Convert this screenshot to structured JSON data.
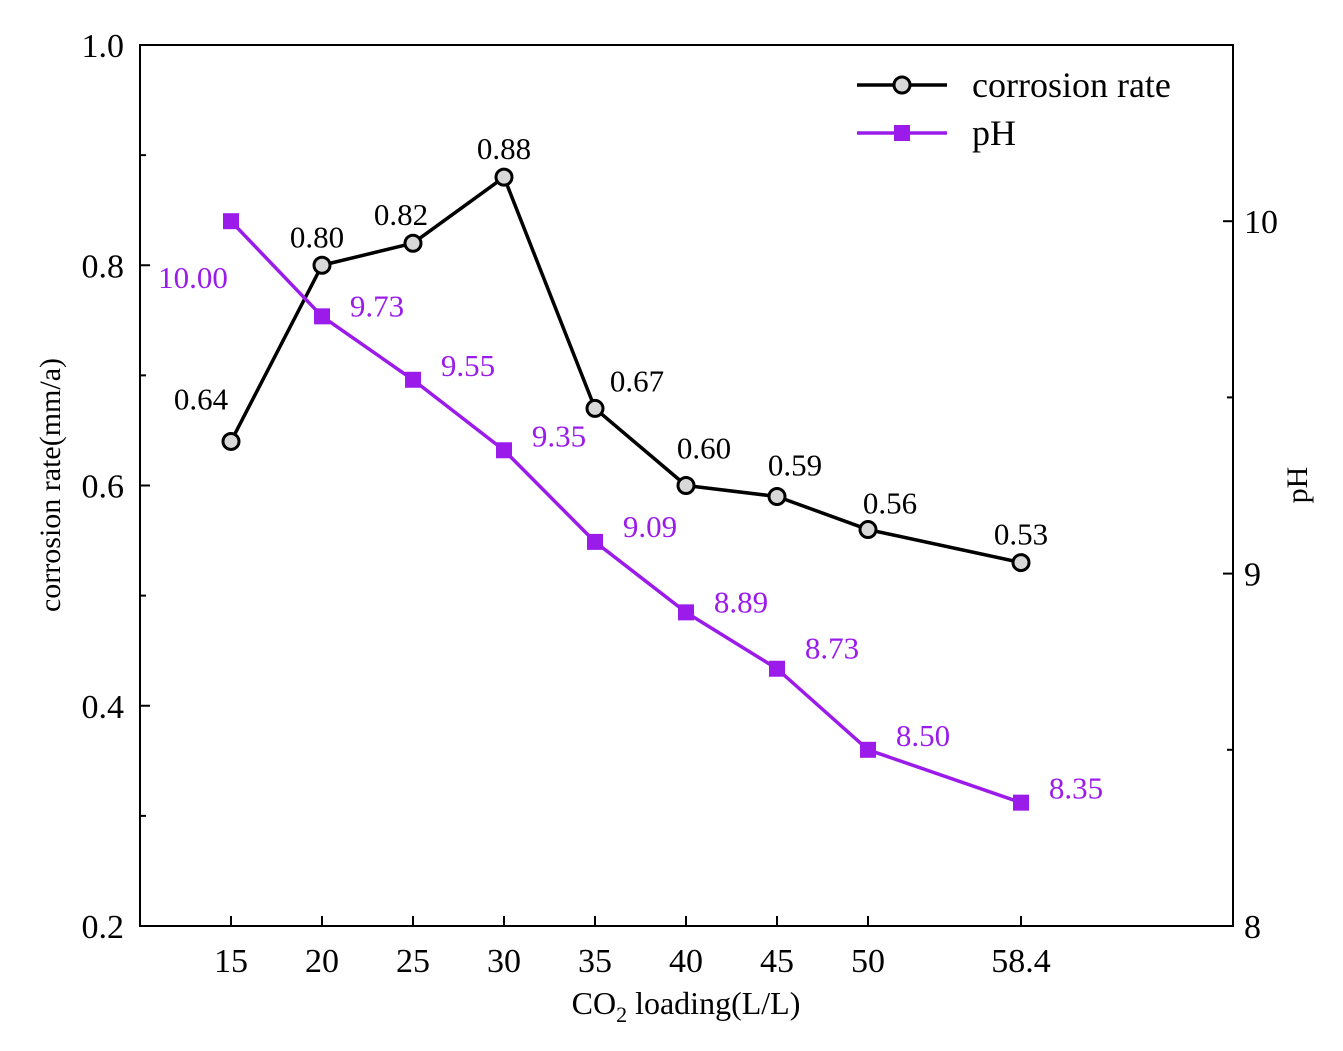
{
  "chart_data": {
    "type": "line",
    "x_categories": [
      "15",
      "20",
      "25",
      "30",
      "35",
      "40",
      "45",
      "50",
      "58.4"
    ],
    "x": [
      15,
      20,
      25,
      30,
      35,
      40,
      45,
      50,
      58.4
    ],
    "xlabel": {
      "pre": "CO",
      "sub": "2",
      "post": " loading(L/L)"
    },
    "ylabel_left": "corrosion rate(mm/a)",
    "ylabel_right": "pH",
    "ylim_left": [
      0.2,
      1.0
    ],
    "yticks_left": [
      "0.2",
      "0.4",
      "0.6",
      "0.8",
      "1.0"
    ],
    "ylim_right": [
      8,
      10.5
    ],
    "yticks_right": [
      "8",
      "9",
      "10"
    ],
    "grid": false,
    "legend_position": "top-right",
    "series": [
      {
        "name": "corrosion rate",
        "axis": "left",
        "marker": "circle",
        "color": "#000000",
        "values": [
          0.64,
          0.8,
          0.82,
          0.88,
          0.67,
          0.6,
          0.59,
          0.56,
          0.53
        ],
        "labels": [
          "0.64",
          "0.80",
          "0.82",
          "0.88",
          "0.67",
          "0.60",
          "0.59",
          "0.56",
          "0.53"
        ]
      },
      {
        "name": "pH",
        "axis": "right",
        "marker": "square",
        "color": "#9b1bea",
        "values": [
          10.0,
          9.73,
          9.55,
          9.35,
          9.09,
          8.89,
          8.73,
          8.5,
          8.35
        ],
        "labels": [
          "10.00",
          "9.73",
          "9.55",
          "9.35",
          "9.09",
          "8.89",
          "8.73",
          "8.50",
          "8.35"
        ]
      }
    ]
  }
}
